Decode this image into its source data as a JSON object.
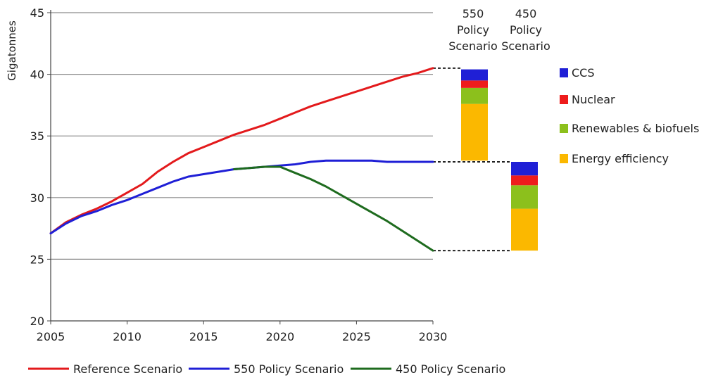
{
  "chart_data": {
    "type": "line",
    "ylabel": "Gigatonnes",
    "xlim": [
      2005,
      2030
    ],
    "ylim": [
      20,
      45
    ],
    "y_ticks": [
      20,
      25,
      30,
      35,
      40,
      45
    ],
    "x_ticks": [
      2005,
      2010,
      2015,
      2020,
      2025,
      2030
    ],
    "grid": "horizontal",
    "series": [
      {
        "name": "Reference Scenario",
        "color": "#e31a1c",
        "x": [
          2005,
          2006,
          2007,
          2008,
          2009,
          2010,
          2011,
          2012,
          2013,
          2014,
          2015,
          2016,
          2017,
          2018,
          2019,
          2020,
          2021,
          2022,
          2023,
          2024,
          2025,
          2026,
          2027,
          2028,
          2029,
          2030
        ],
        "values": [
          27.1,
          28.0,
          28.6,
          29.1,
          29.7,
          30.4,
          31.1,
          32.1,
          32.9,
          33.6,
          34.1,
          34.6,
          35.1,
          35.5,
          35.9,
          36.4,
          36.9,
          37.4,
          37.8,
          38.2,
          38.6,
          39.0,
          39.4,
          39.8,
          40.1,
          40.5
        ],
        "style": "solid"
      },
      {
        "name": "550 Policy Scenario",
        "color": "#1f1fd6",
        "x": [
          2005,
          2006,
          2007,
          2008,
          2009,
          2010,
          2011,
          2012,
          2013,
          2014,
          2015,
          2016,
          2017,
          2018,
          2019,
          2020,
          2021,
          2022,
          2023,
          2024,
          2025,
          2026,
          2027,
          2028,
          2029,
          2030
        ],
        "values": [
          27.1,
          27.9,
          28.5,
          28.9,
          29.4,
          29.8,
          30.3,
          30.8,
          31.3,
          31.7,
          31.9,
          32.1,
          32.3,
          32.4,
          32.5,
          32.6,
          32.7,
          32.9,
          33.0,
          33.0,
          33.0,
          33.0,
          32.9,
          32.9,
          32.9,
          32.9
        ],
        "style": "solid"
      },
      {
        "name": "450 Policy Scenario",
        "color": "#1e6b1e",
        "x": [
          2017,
          2018,
          2019,
          2020,
          2021,
          2022,
          2023,
          2024,
          2025,
          2026,
          2027,
          2028,
          2029,
          2030
        ],
        "values": [
          32.3,
          32.4,
          32.5,
          32.5,
          32.0,
          31.5,
          30.9,
          30.2,
          29.5,
          28.8,
          28.1,
          27.3,
          26.5,
          25.7
        ],
        "style": "solid"
      }
    ],
    "legend": {
      "position": "bottom",
      "entries": [
        "Reference Scenario",
        "550 Policy Scenario",
        "450 Policy Scenario"
      ]
    },
    "stacked_bars": [
      {
        "title": [
          "550",
          "Policy",
          "Scenario"
        ],
        "bottom": 33.0,
        "segments": [
          {
            "name": "Energy efficiency",
            "value": 4.6
          },
          {
            "name": "Renewables & biofuels",
            "value": 1.3
          },
          {
            "name": "Nuclear",
            "value": 0.6
          },
          {
            "name": "CCS",
            "value": 0.9
          }
        ]
      },
      {
        "title": [
          "450",
          "Policy",
          "Scenario"
        ],
        "bottom": 25.7,
        "segments": [
          {
            "name": "Energy efficiency",
            "value": 3.4
          },
          {
            "name": "Renewables & biofuels",
            "value": 1.9
          },
          {
            "name": "Nuclear",
            "value": 0.8
          },
          {
            "name": "CCS",
            "value": 1.1
          }
        ]
      }
    ],
    "connectors": [
      {
        "from_value": 40.5,
        "style": "dashed"
      },
      {
        "from_value": 32.9,
        "style": "dashed"
      },
      {
        "from_value": 25.7,
        "style": "dashed"
      }
    ],
    "segment_legend": {
      "position": "right",
      "entries": [
        {
          "name": "CCS",
          "color": "#1f1fd6"
        },
        {
          "name": "Nuclear",
          "color": "#ee1c1c"
        },
        {
          "name": "Renewables & biofuels",
          "color": "#8cc01c"
        },
        {
          "name": "Energy efficiency",
          "color": "#fbb800"
        }
      ]
    }
  }
}
